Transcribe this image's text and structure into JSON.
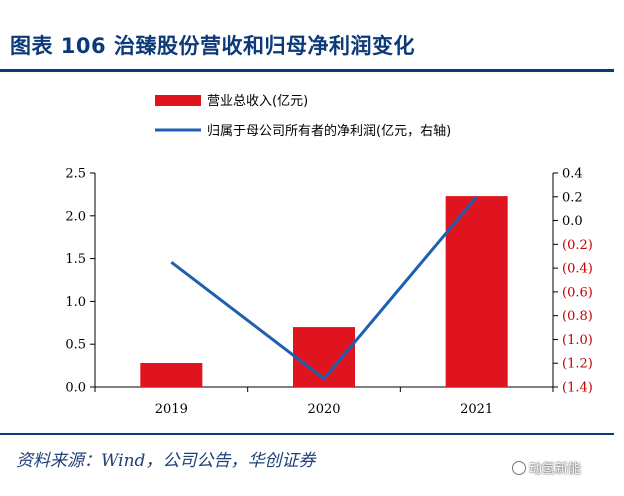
{
  "title": "图表 106  治臻股份营收和归母净利润变化",
  "source": "资料来源：Wind，公司公告，华创证券",
  "watermark": "动氢新能",
  "colors": {
    "bar": "#e0141e",
    "line": "#1f5fb0",
    "title": "#0c3a78"
  },
  "chart_data": {
    "type": "bar",
    "categories": [
      "2019",
      "2020",
      "2021"
    ],
    "series": [
      {
        "name": "营业总收入(亿元)",
        "type": "bar",
        "axis": "left",
        "values": [
          0.28,
          0.7,
          2.23
        ]
      },
      {
        "name": "归属于母公司所有者的净利润(亿元，右轴)",
        "type": "line",
        "axis": "right",
        "values": [
          -0.35,
          -1.33,
          0.2
        ]
      }
    ],
    "y_left": {
      "min": 0,
      "max": 2.5,
      "ticks": [
        "0.0",
        "0.5",
        "1.0",
        "1.5",
        "2.0",
        "2.5"
      ],
      "tick_values": [
        0,
        0.5,
        1.0,
        1.5,
        2.0,
        2.5
      ]
    },
    "y_right": {
      "min": -1.4,
      "max": 0.4,
      "ticks": [
        "0.4",
        "0.2",
        "0.0",
        "(0.2)",
        "(0.4)",
        "(0.6)",
        "(0.8)",
        "(1.0)",
        "(1.2)",
        "(1.4)"
      ],
      "tick_values": [
        0.4,
        0.2,
        0.0,
        -0.2,
        -0.4,
        -0.6,
        -0.8,
        -1.0,
        -1.2,
        -1.4
      ]
    },
    "legend_position": "top"
  }
}
